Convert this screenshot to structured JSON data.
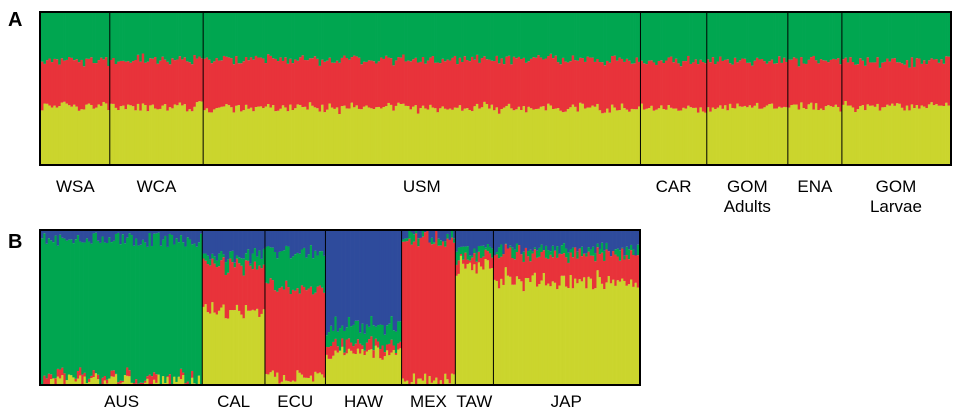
{
  "chart_data": [
    {
      "type": "bar",
      "stacked": true,
      "panel_letter": "A",
      "ylim": [
        0,
        1
      ],
      "colors": {
        "yellow": "#cbd52d",
        "red": "#e8333a",
        "green": "#00a650",
        "blue": "#2e4b9c"
      },
      "stack_order": [
        "yellow",
        "red",
        "green"
      ],
      "populations": [
        {
          "name": "WSA",
          "label": "WSA",
          "sample_count": 28,
          "mean_proportions": {
            "yellow": 0.38,
            "red": 0.3,
            "green": 0.32
          }
        },
        {
          "name": "WCA",
          "label": "WCA",
          "sample_count": 38,
          "mean_proportions": {
            "yellow": 0.38,
            "red": 0.31,
            "green": 0.31
          }
        },
        {
          "name": "USM",
          "label": "USM",
          "sample_count": 178,
          "mean_proportions": {
            "yellow": 0.37,
            "red": 0.32,
            "green": 0.31
          }
        },
        {
          "name": "CAR",
          "label": "CAR",
          "sample_count": 27,
          "mean_proportions": {
            "yellow": 0.37,
            "red": 0.31,
            "green": 0.32
          }
        },
        {
          "name": "GOM Adults",
          "label_lines": [
            "GOM",
            "Adults"
          ],
          "sample_count": 33,
          "mean_proportions": {
            "yellow": 0.38,
            "red": 0.31,
            "green": 0.31
          }
        },
        {
          "name": "ENA",
          "label": "ENA",
          "sample_count": 22,
          "mean_proportions": {
            "yellow": 0.38,
            "red": 0.31,
            "green": 0.31
          }
        },
        {
          "name": "GOM Larvae",
          "label_lines": [
            "GOM",
            "Larvae"
          ],
          "sample_count": 44,
          "mean_proportions": {
            "yellow": 0.38,
            "red": 0.3,
            "green": 0.32
          }
        }
      ]
    },
    {
      "type": "bar",
      "stacked": true,
      "panel_letter": "B",
      "ylim": [
        0,
        1
      ],
      "colors": {
        "yellow": "#cbd52d",
        "red": "#e8333a",
        "green": "#00a650",
        "blue": "#2e4b9c"
      },
      "stack_order": [
        "yellow",
        "red",
        "green",
        "blue"
      ],
      "populations": [
        {
          "name": "AUS",
          "label": "AUS",
          "sample_count": 72,
          "mean_proportions": {
            "yellow": 0.02,
            "red": 0.02,
            "green": 0.9,
            "blue": 0.06
          }
        },
        {
          "name": "CAL",
          "label": "CAL",
          "sample_count": 28,
          "mean_proportions": {
            "yellow": 0.47,
            "red": 0.3,
            "green": 0.06,
            "blue": 0.17
          }
        },
        {
          "name": "ECU",
          "label": "ECU",
          "sample_count": 27,
          "mean_proportions": {
            "yellow": 0.05,
            "red": 0.57,
            "green": 0.24,
            "blue": 0.14
          }
        },
        {
          "name": "HAW",
          "label": "HAW",
          "sample_count": 34,
          "mean_proportions": {
            "yellow": 0.21,
            "red": 0.05,
            "green": 0.12,
            "blue": 0.62
          }
        },
        {
          "name": "MEX",
          "label": "MEX",
          "sample_count": 24,
          "mean_proportions": {
            "yellow": 0.03,
            "red": 0.91,
            "green": 0.03,
            "blue": 0.03
          }
        },
        {
          "name": "TAW",
          "label": "TAW",
          "sample_count": 17,
          "mean_proportions": {
            "yellow": 0.77,
            "red": 0.06,
            "green": 0.05,
            "blue": 0.12
          }
        },
        {
          "name": "JAP",
          "label": "JAP",
          "sample_count": 65,
          "mean_proportions": {
            "yellow": 0.67,
            "red": 0.18,
            "green": 0.03,
            "blue": 0.12
          }
        }
      ]
    }
  ]
}
